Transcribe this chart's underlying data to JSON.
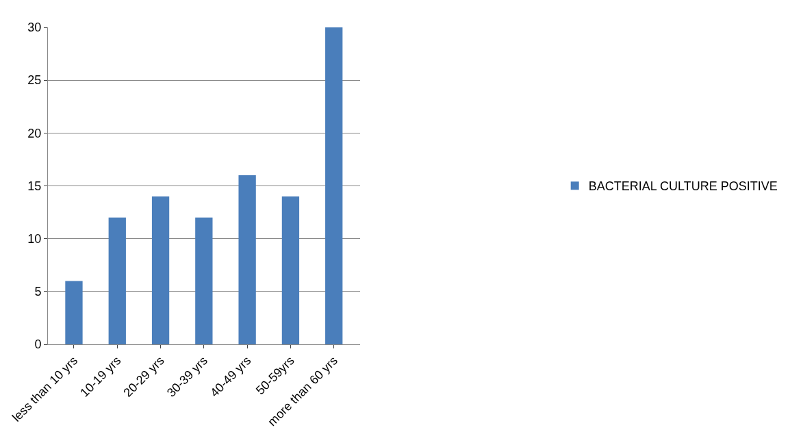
{
  "chart_data": {
    "type": "bar",
    "categories": [
      "less than 10 yrs",
      "10-19 yrs",
      "20-29 yrs",
      "30-39 yrs",
      "40-49 yrs",
      "50-59yrs",
      "more than 60 yrs"
    ],
    "series": [
      {
        "name": "BACTERIAL CULTURE POSITIVE",
        "color": "#4a7ebb",
        "values": [
          6,
          12,
          14,
          12,
          16,
          14,
          30
        ]
      }
    ],
    "ylim": [
      0,
      30
    ],
    "yticks": [
      0,
      5,
      10,
      15,
      20,
      25,
      30
    ],
    "grid": "y",
    "legend": "right"
  }
}
